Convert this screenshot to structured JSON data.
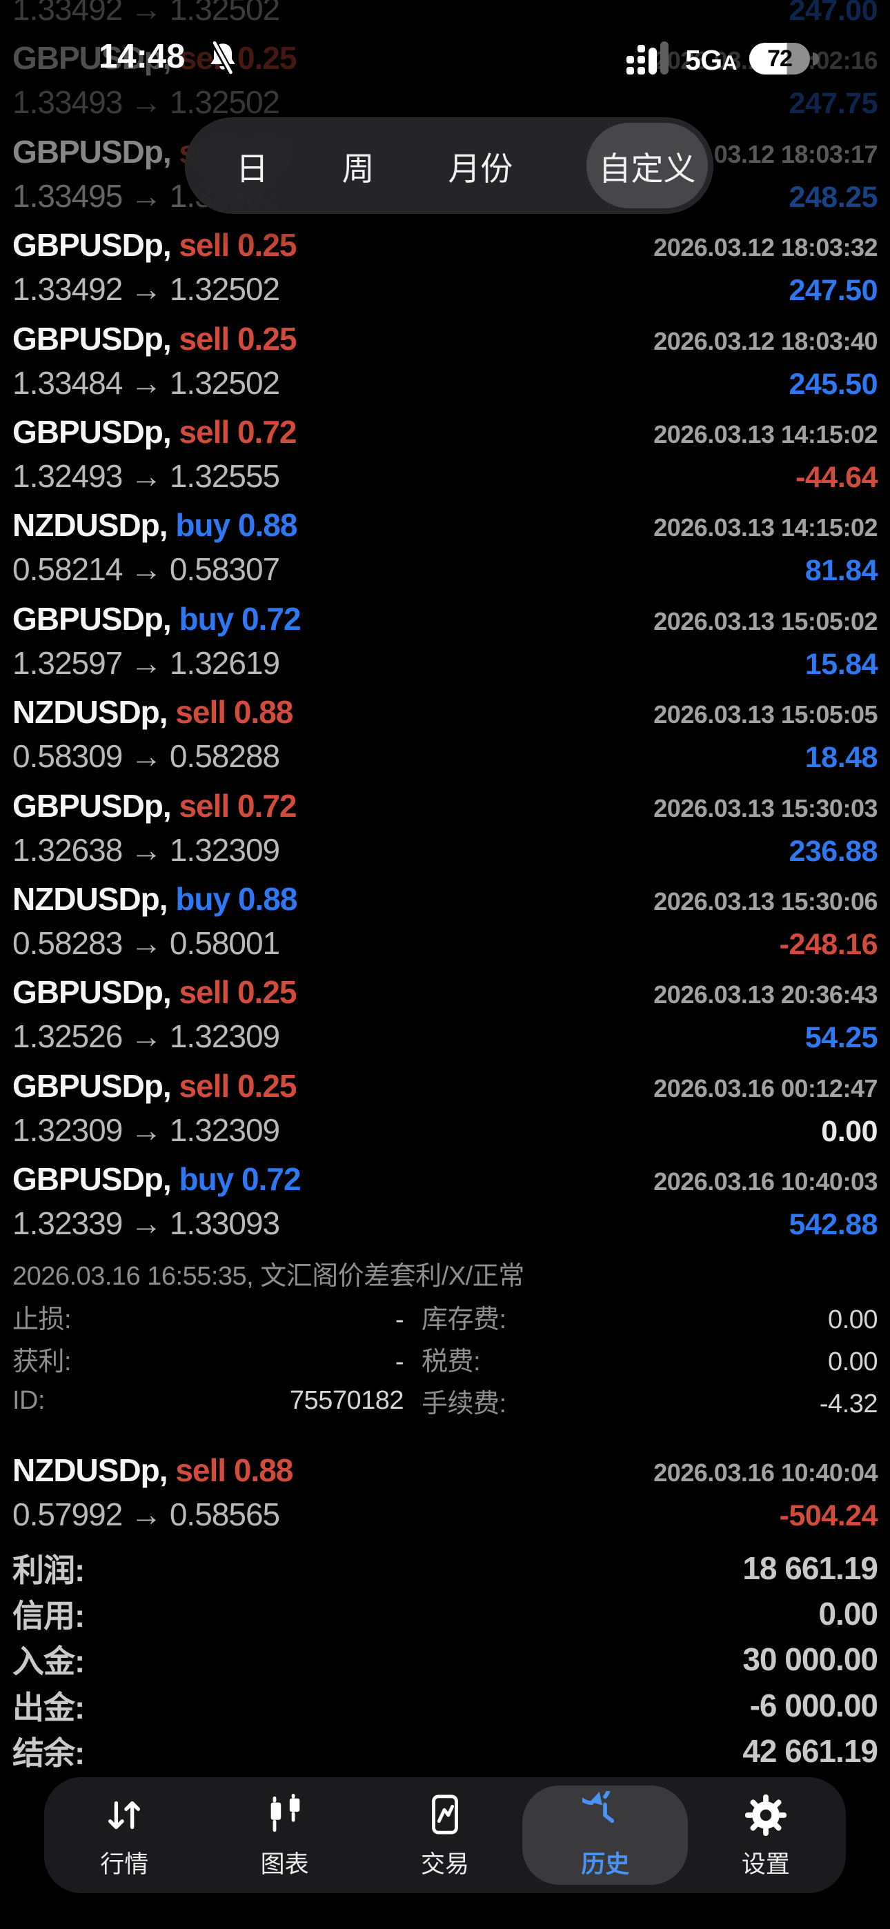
{
  "status_bar": {
    "time": "14:48",
    "network": "5G",
    "network_sub": "A",
    "battery_percent": "72"
  },
  "period_selector": {
    "options": [
      "日",
      "周",
      "月份",
      "自定义"
    ],
    "selected": "自定义"
  },
  "history": {
    "rows": [
      {
        "partial": true,
        "open": "1.33492",
        "close": "1.32502",
        "profit": "247.00",
        "dim": "high"
      },
      {
        "symbol": "GBPUSDp",
        "side": "sell",
        "volume": "0.25",
        "time": "2026.03.12 18:02:16",
        "open": "1.33493",
        "close": "1.32502",
        "profit": "247.75",
        "dim": "high"
      },
      {
        "symbol": "GBPUSDp",
        "side": "sell",
        "volume": "0.25",
        "time": "2026.03.12 18:03:17",
        "open": "1.33495",
        "close": "1.32502",
        "profit": "248.25",
        "dim": "mid"
      },
      {
        "symbol": "GBPUSDp",
        "side": "sell",
        "volume": "0.25",
        "time": "2026.03.12 18:03:32",
        "open": "1.33492",
        "close": "1.32502",
        "profit": "247.50"
      },
      {
        "symbol": "GBPUSDp",
        "side": "sell",
        "volume": "0.25",
        "time": "2026.03.12 18:03:40",
        "open": "1.33484",
        "close": "1.32502",
        "profit": "245.50"
      },
      {
        "symbol": "GBPUSDp",
        "side": "sell",
        "volume": "0.72",
        "time": "2026.03.13 14:15:02",
        "open": "1.32493",
        "close": "1.32555",
        "profit": "-44.64"
      },
      {
        "symbol": "NZDUSDp",
        "side": "buy",
        "volume": "0.88",
        "time": "2026.03.13 14:15:02",
        "open": "0.58214",
        "close": "0.58307",
        "profit": "81.84"
      },
      {
        "symbol": "GBPUSDp",
        "side": "buy",
        "volume": "0.72",
        "time": "2026.03.13 15:05:02",
        "open": "1.32597",
        "close": "1.32619",
        "profit": "15.84"
      },
      {
        "symbol": "NZDUSDp",
        "side": "sell",
        "volume": "0.88",
        "time": "2026.03.13 15:05:05",
        "open": "0.58309",
        "close": "0.58288",
        "profit": "18.48"
      },
      {
        "symbol": "GBPUSDp",
        "side": "sell",
        "volume": "0.72",
        "time": "2026.03.13 15:30:03",
        "open": "1.32638",
        "close": "1.32309",
        "profit": "236.88"
      },
      {
        "symbol": "NZDUSDp",
        "side": "buy",
        "volume": "0.88",
        "time": "2026.03.13 15:30:06",
        "open": "0.58283",
        "close": "0.58001",
        "profit": "-248.16"
      },
      {
        "symbol": "GBPUSDp",
        "side": "sell",
        "volume": "0.25",
        "time": "2026.03.13 20:36:43",
        "open": "1.32526",
        "close": "1.32309",
        "profit": "54.25"
      },
      {
        "symbol": "GBPUSDp",
        "side": "sell",
        "volume": "0.25",
        "time": "2026.03.16 00:12:47",
        "open": "1.32309",
        "close": "1.32309",
        "profit": "0.00"
      },
      {
        "symbol": "GBPUSDp",
        "side": "buy",
        "volume": "0.72",
        "time": "2026.03.16 10:40:03",
        "open": "1.32339",
        "close": "1.33093",
        "profit": "542.88"
      }
    ],
    "expanded_detail": {
      "header": "2026.03.16 16:55:35, 文汇阁价差套利/X/正常",
      "fields": [
        {
          "label": "止损:",
          "value": "-",
          "label2": "库存费:",
          "value2": "0.00"
        },
        {
          "label": "获利:",
          "value": "-",
          "label2": "税费:",
          "value2": "0.00"
        },
        {
          "label": "ID:",
          "value": "75570182",
          "label2": "手续费:",
          "value2": "-4.32"
        }
      ]
    },
    "last_row": {
      "symbol": "NZDUSDp",
      "side": "sell",
      "volume": "0.88",
      "time": "2026.03.16 10:40:04",
      "open": "0.57992",
      "close": "0.58565",
      "profit": "-504.24"
    },
    "summary": [
      {
        "label": "利润:",
        "value": "18 661.19"
      },
      {
        "label": "信用:",
        "value": "0.00"
      },
      {
        "label": "入金:",
        "value": "30 000.00"
      },
      {
        "label": "出金:",
        "value": "-6 000.00"
      },
      {
        "label": "结余:",
        "value": "42 661.19"
      }
    ]
  },
  "tab_bar": {
    "tabs": [
      {
        "key": "quotes",
        "label": "行情",
        "icon": "quotes-arrows-icon",
        "active": false
      },
      {
        "key": "charts",
        "label": "图表",
        "icon": "candlestick-chart-icon",
        "active": false
      },
      {
        "key": "trade",
        "label": "交易",
        "icon": "trade-chart-icon",
        "active": false
      },
      {
        "key": "history",
        "label": "历史",
        "icon": "history-clock-icon",
        "active": true
      },
      {
        "key": "settings",
        "label": "设置",
        "icon": "settings-gear-icon",
        "active": false
      }
    ]
  },
  "colors": {
    "buy_blue": "#2e78f3",
    "sell_red": "#d24b3d",
    "active_tab_blue": "#4a93f5",
    "background": "#000000"
  }
}
